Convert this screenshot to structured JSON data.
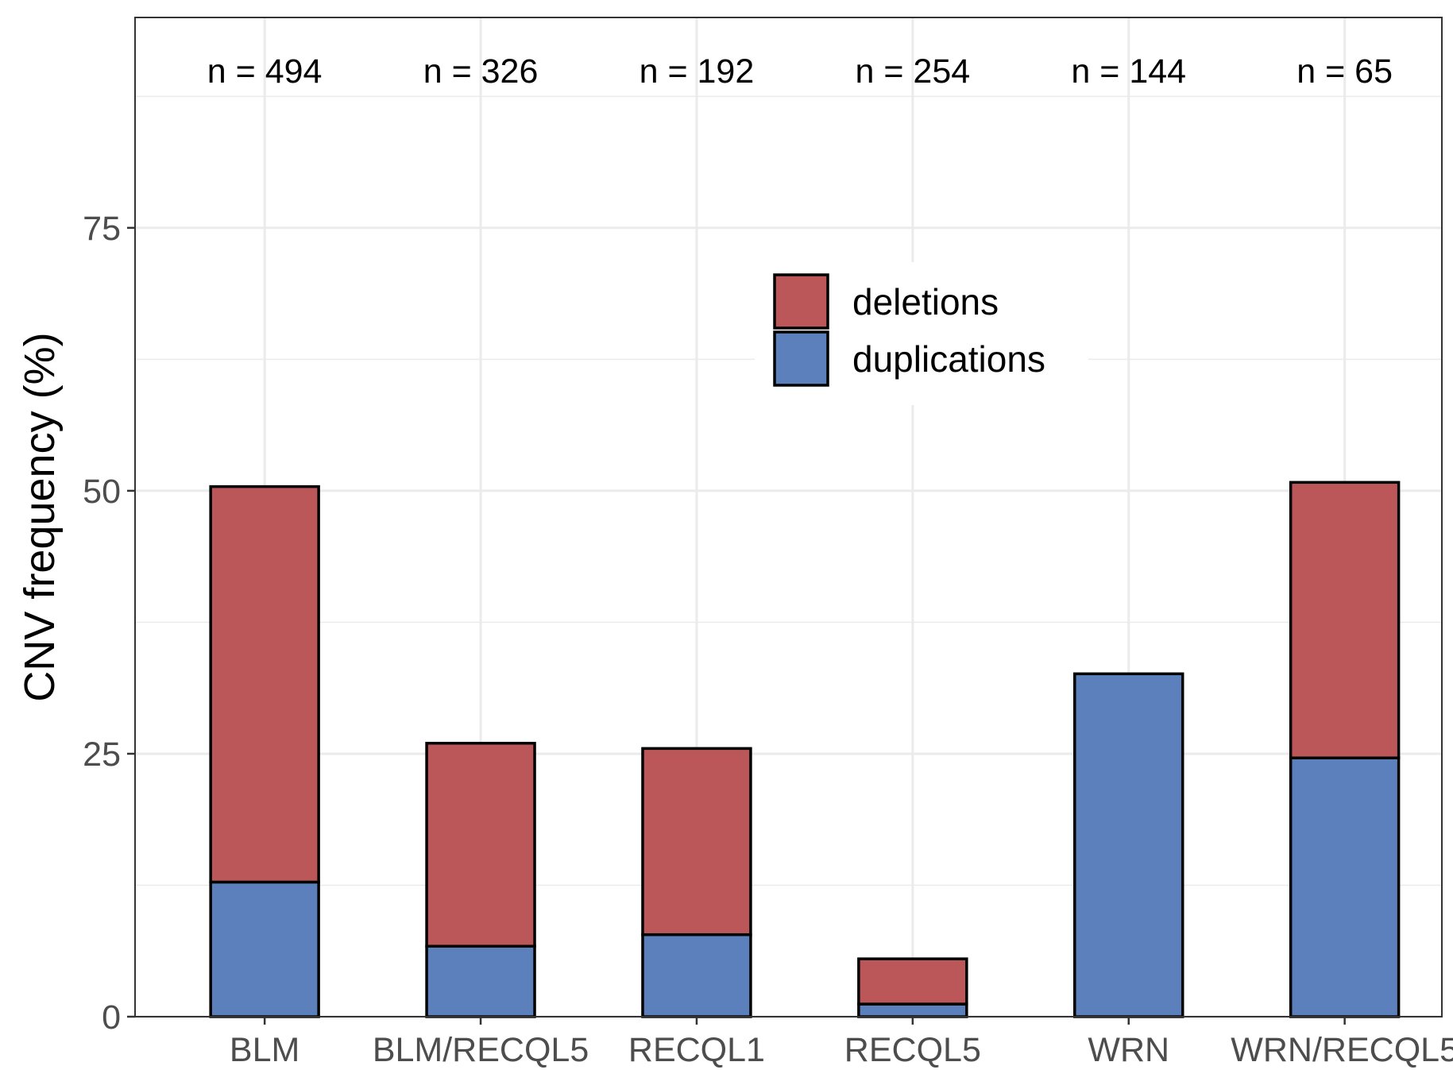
{
  "chart_data": {
    "type": "bar",
    "stacked": true,
    "title": "",
    "xlabel": "",
    "ylabel": "CNV frequency (%)",
    "ylim": [
      0,
      95
    ],
    "yticks": [
      0,
      25,
      50,
      75
    ],
    "grid": true,
    "legend_position": "top-right",
    "categories": [
      "BLM",
      "BLM/RECQL5",
      "RECQL1",
      "RECQL5",
      "WRN",
      "WRN/RECQL5"
    ],
    "sample_counts": [
      "n = 494",
      "n = 326",
      "n = 192",
      "n = 254",
      "n = 144",
      "n = 65"
    ],
    "series": [
      {
        "name": "duplications",
        "color": "#5b80bb",
        "values": [
          12.8,
          6.7,
          7.8,
          1.2,
          32.6,
          24.6
        ]
      },
      {
        "name": "deletions",
        "color": "#bb5659",
        "values": [
          37.6,
          19.3,
          17.7,
          4.3,
          0.0,
          26.2
        ]
      }
    ],
    "legend": [
      {
        "label": "deletions",
        "color": "#bb5659"
      },
      {
        "label": "duplications",
        "color": "#5b80bb"
      }
    ]
  }
}
